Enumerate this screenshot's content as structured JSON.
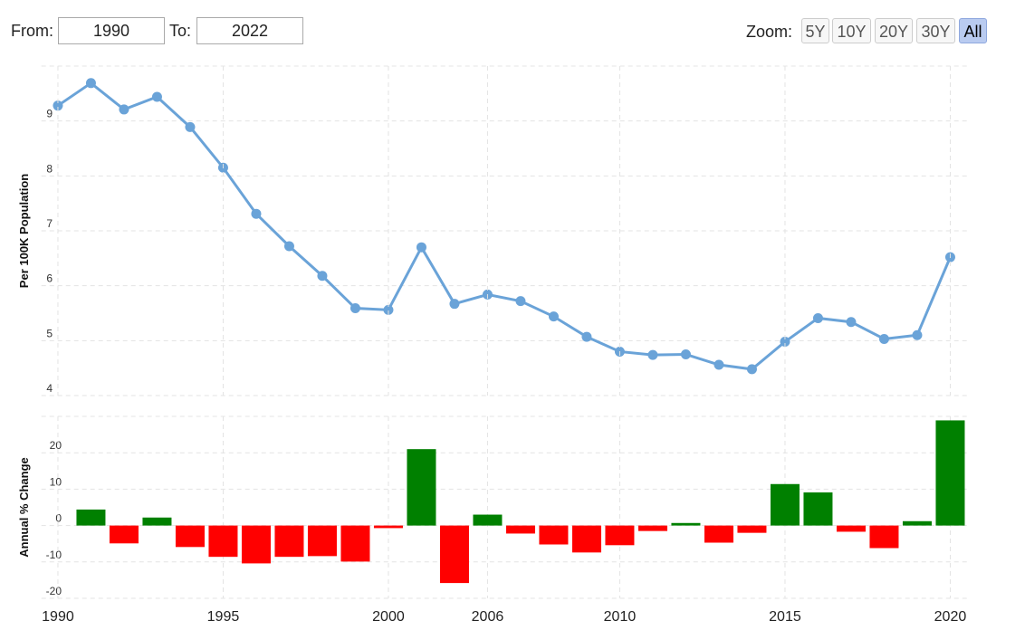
{
  "controls": {
    "from_label": "From:",
    "from_value": "1990",
    "to_label": "To:",
    "to_value": "2022",
    "zoom_label": "Zoom:",
    "zoom_buttons": [
      "5Y",
      "10Y",
      "20Y",
      "30Y",
      "All"
    ],
    "zoom_active": "All"
  },
  "chart_data": [
    {
      "type": "line",
      "y_label": "Per 100K Population",
      "color": "#6aa3d8",
      "values": [
        9.28,
        9.69,
        9.21,
        9.44,
        8.89,
        8.15,
        7.31,
        6.72,
        6.18,
        5.59,
        5.56,
        6.7,
        5.67,
        5.84,
        5.72,
        5.44,
        5.07,
        4.8,
        4.74,
        4.75,
        4.56,
        4.48,
        4.98,
        5.41,
        5.34,
        5.03,
        5.1,
        6.52
      ],
      "ylim": [
        4,
        10
      ],
      "yticks": [
        4,
        5,
        6,
        7,
        8,
        9
      ],
      "grid": true
    },
    {
      "type": "bar",
      "y_label": "Annual % Change",
      "categories": [
        "1990",
        null,
        null,
        null,
        null,
        "1995",
        null,
        null,
        null,
        null,
        "2000",
        null,
        null,
        "2006",
        null,
        null,
        null,
        "2010",
        null,
        null,
        null,
        null,
        "2015",
        null,
        null,
        null,
        null,
        "2020"
      ],
      "values": [
        null,
        4.4,
        -4.9,
        2.2,
        -5.9,
        -8.6,
        -10.4,
        -8.6,
        -8.4,
        -9.9,
        -0.7,
        21.0,
        -15.8,
        3.0,
        -2.2,
        -5.2,
        -7.4,
        -5.4,
        -1.5,
        0.7,
        -4.7,
        -2.0,
        11.4,
        9.1,
        -1.7,
        -6.2,
        1.2,
        28.9
      ],
      "colors": {
        "positive": "#008000",
        "negative": "#ff0000"
      },
      "ylim": [
        -20,
        30
      ],
      "yticks": [
        -20,
        -10,
        0,
        10,
        20
      ],
      "grid": true
    }
  ]
}
